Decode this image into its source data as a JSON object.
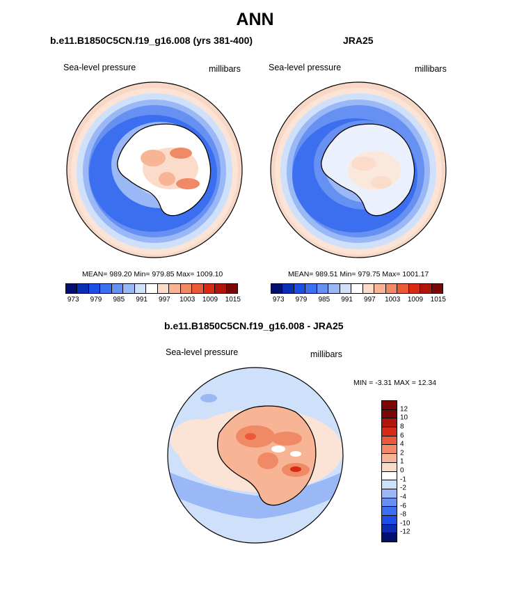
{
  "figure_title": "ANN",
  "colors": {
    "abs_palette": [
      "#03106f",
      "#0a2fb5",
      "#1c4fe6",
      "#3b6fef",
      "#6690f2",
      "#9ab8f6",
      "#cfe0fb",
      "#ffffff",
      "#fbdccb",
      "#f7b595",
      "#f08a66",
      "#ea5a38",
      "#d92a16",
      "#b0140b",
      "#7a0707"
    ],
    "diff_palette": [
      "#03106f",
      "#0a2fb5",
      "#1c4fe6",
      "#3b6fef",
      "#6690f2",
      "#9ab8f6",
      "#cfe0fb",
      "#ffffff",
      "#fbdccb",
      "#f7b595",
      "#f08a66",
      "#ea5a38",
      "#d92a16",
      "#b0140b",
      "#7a0707"
    ],
    "outline": "#000000"
  },
  "chart_data": [
    {
      "type": "heatmap",
      "projection": "south-polar-stereographic",
      "title": "b.e11.B1850C5CN.f19_g16.008 (yrs 381-400)",
      "left_label": "Sea-level pressure",
      "right_label": "millibars",
      "stats": "MEAN= 989.20  Min= 979.85  Max= 1009.10",
      "mean": 989.2,
      "min": 979.85,
      "max": 1009.1,
      "colorbar_levels": [
        973,
        976,
        979,
        982,
        985,
        988,
        991,
        994,
        997,
        1000,
        1003,
        1006,
        1009,
        1012,
        1015
      ],
      "colorbar_tick_labels": [
        "973",
        "979",
        "985",
        "991",
        "997",
        "1003",
        "1009",
        "1015"
      ],
      "field_description_ring_values": [
        1000,
        993,
        985,
        980,
        985,
        995,
        1005
      ]
    },
    {
      "type": "heatmap",
      "projection": "south-polar-stereographic",
      "title": "JRA25",
      "left_label": "Sea-level pressure",
      "right_label": "millibars",
      "stats": "MEAN= 989.51  Min= 979.75  Max= 1001.17",
      "mean": 989.51,
      "min": 979.75,
      "max": 1001.17,
      "colorbar_levels": [
        973,
        976,
        979,
        982,
        985,
        988,
        991,
        994,
        997,
        1000,
        1003,
        1006,
        1009,
        1012,
        1015
      ],
      "colorbar_tick_labels": [
        "973",
        "979",
        "985",
        "991",
        "997",
        "1003",
        "1009",
        "1015"
      ],
      "field_description_ring_values": [
        1000,
        993,
        985,
        980,
        985,
        993,
        998
      ]
    },
    {
      "type": "heatmap",
      "projection": "south-polar-stereographic",
      "title": "b.e11.B1850C5CN.f19_g16.008 - JRA25",
      "left_label": "Sea-level pressure",
      "right_label": "millibars",
      "stats": "MIN =  -3.31 MAX =  12.34",
      "min": -3.31,
      "max": 12.34,
      "colorbar_levels": [
        -12,
        -10,
        -8,
        -6,
        -4,
        -2,
        -1,
        0,
        1,
        2,
        4,
        6,
        8,
        10,
        12
      ],
      "colorbar_tick_labels": [
        "12",
        "10",
        "8",
        "6",
        "4",
        "2",
        "1",
        "0",
        "-1",
        "-2",
        "-4",
        "-6",
        "-8",
        "-10",
        "-12"
      ]
    }
  ]
}
